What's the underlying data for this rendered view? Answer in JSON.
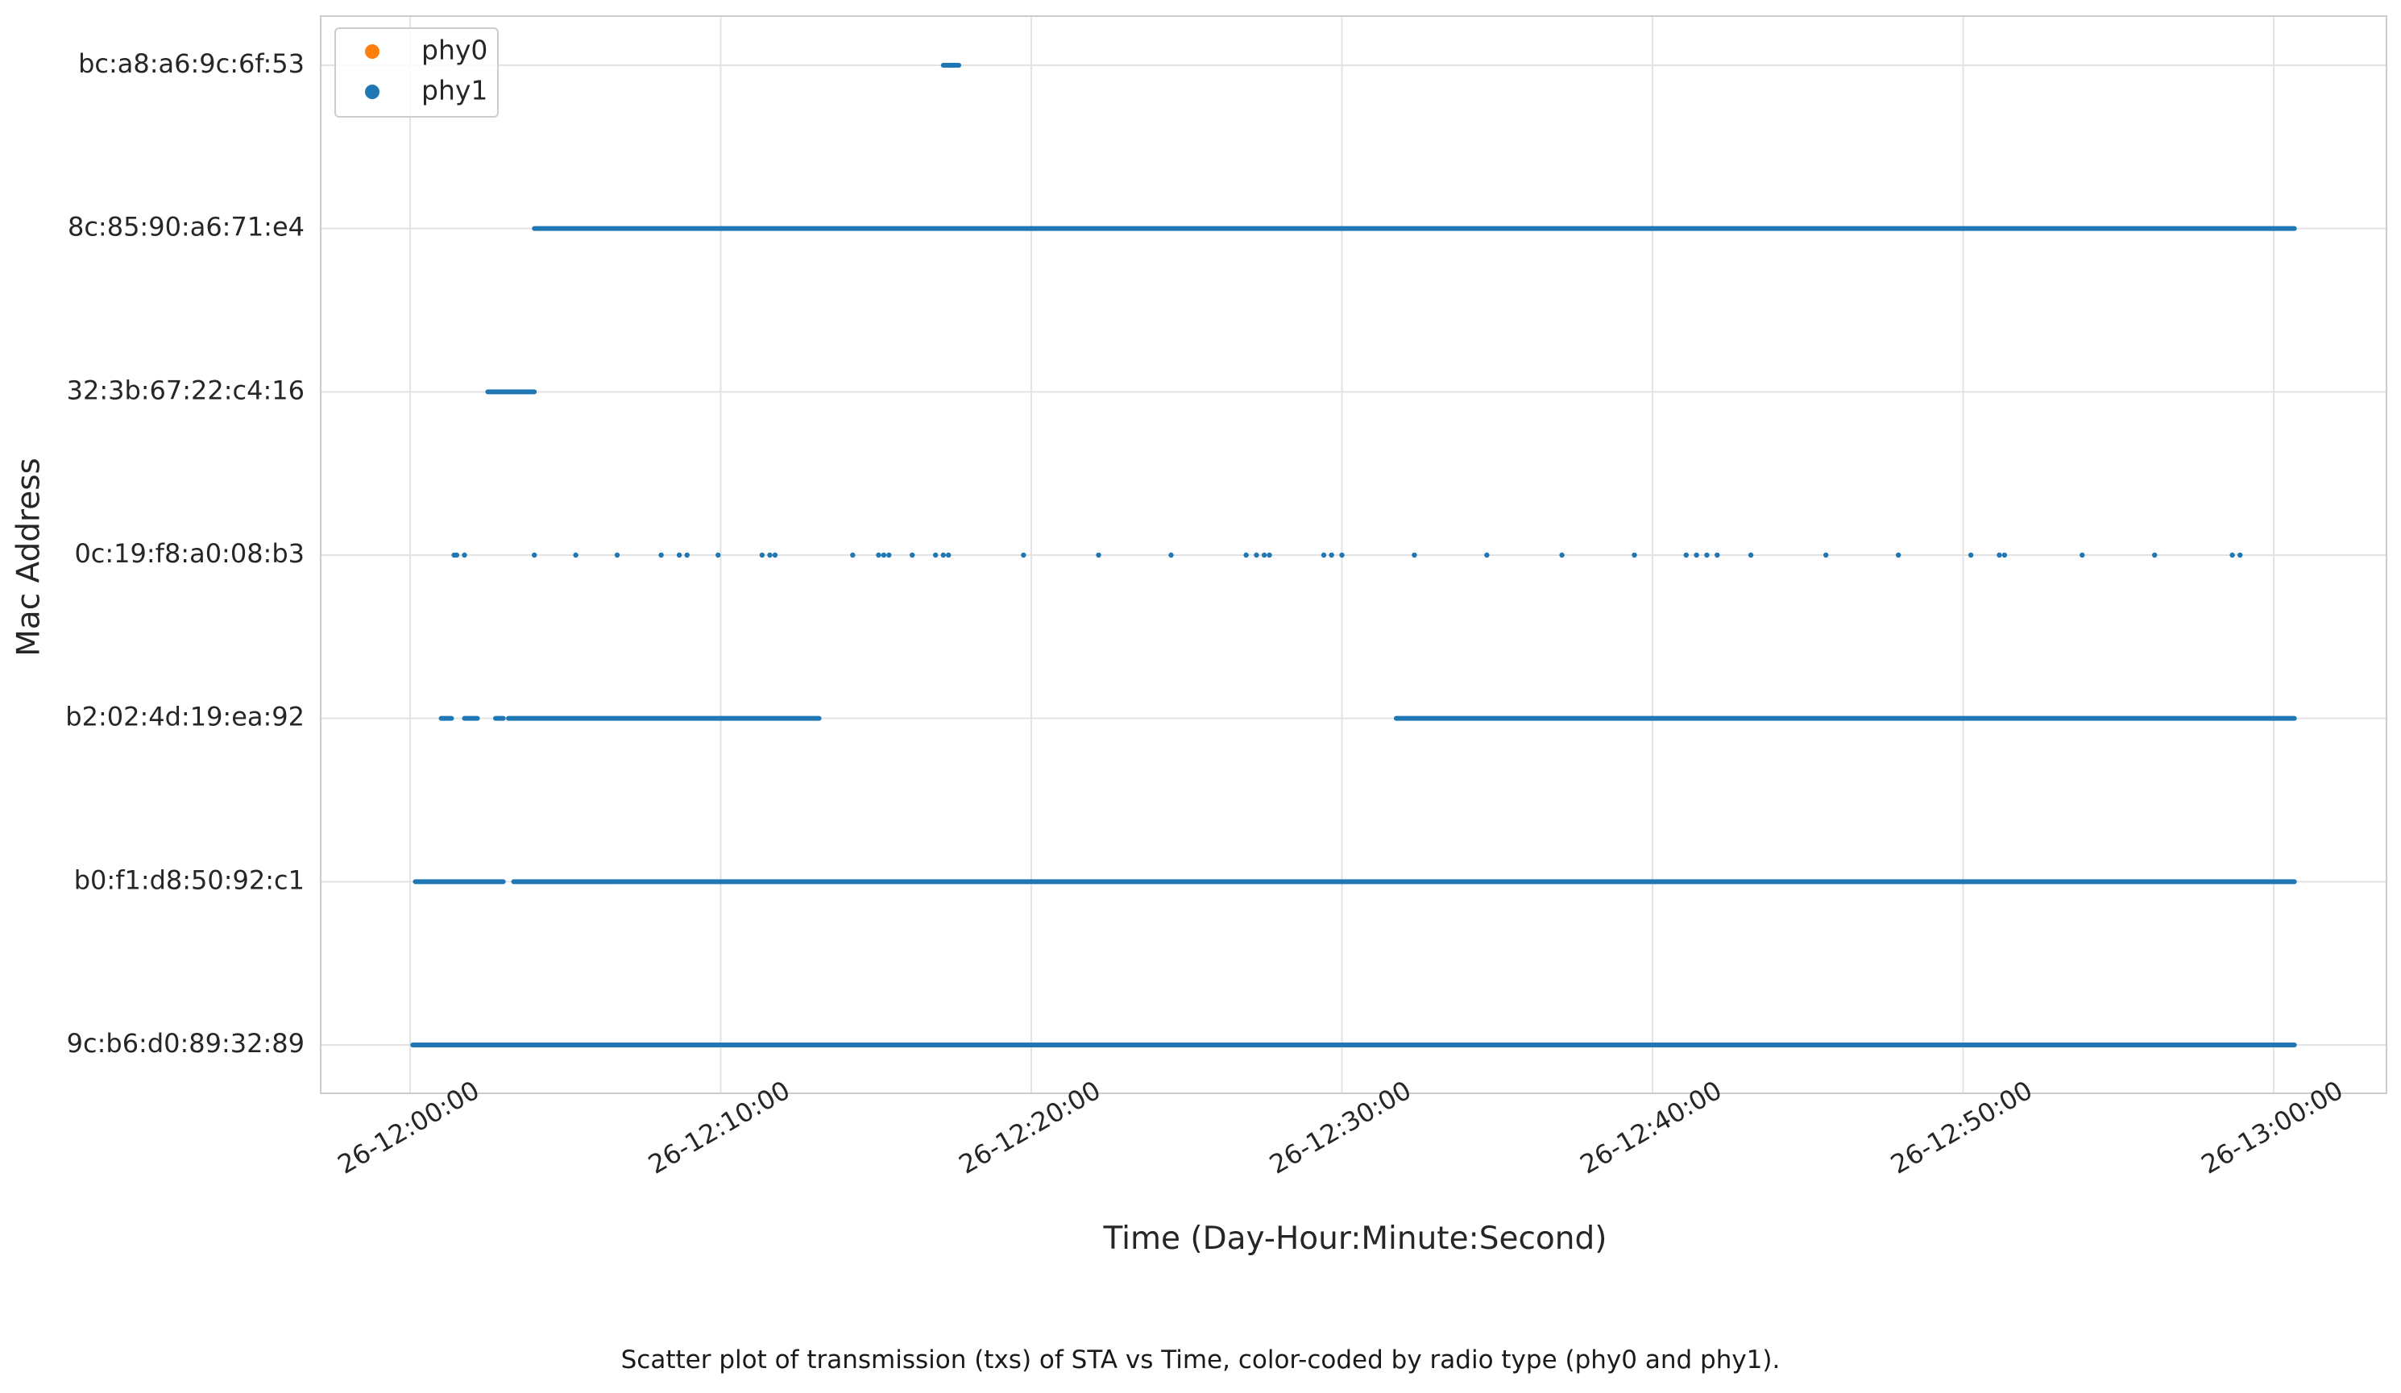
{
  "chart_data": {
    "type": "scatter",
    "title": "",
    "xlabel": "Time (Day-Hour:Minute:Second)",
    "ylabel": "Mac Address",
    "x_tick_labels": [
      "26-12:00:00",
      "26-12:10:00",
      "26-12:20:00",
      "26-12:30:00",
      "26-12:40:00",
      "26-12:50:00",
      "26-13:00:00"
    ],
    "xlim": [
      "26-11:57:10",
      "26-13:03:40"
    ],
    "y_categories": [
      "9c:b6:d0:89:32:89",
      "b0:f1:d8:50:92:c1",
      "b2:02:4d:19:ea:92",
      "0c:19:f8:a0:08:b3",
      "32:3b:67:22:c4:16",
      "8c:85:90:a6:71:e4",
      "bc:a8:a6:9c:6f:53"
    ],
    "grid": true,
    "legend_position": "top-left",
    "series": [
      {
        "name": "phy0",
        "color": "#ff7f0e",
        "segments": []
      },
      {
        "name": "phy1",
        "color": "#1f77b4",
        "segments": [
          {
            "mac": "bc:a8:a6:9c:6f:53",
            "from": "26-12:17:10",
            "to": "26-12:17:40"
          },
          {
            "mac": "8c:85:90:a6:71:e4",
            "from": "26-12:04:00",
            "to": "26-13:00:40"
          },
          {
            "mac": "32:3b:67:22:c4:16",
            "from": "26-12:02:30",
            "to": "26-12:04:00"
          },
          {
            "mac": "b2:02:4d:19:ea:92",
            "from": "26-12:01:00",
            "to": "26-12:01:20"
          },
          {
            "mac": "b2:02:4d:19:ea:92",
            "from": "26-12:01:45",
            "to": "26-12:02:10"
          },
          {
            "mac": "b2:02:4d:19:ea:92",
            "from": "26-12:02:45",
            "to": "26-12:03:00"
          },
          {
            "mac": "b2:02:4d:19:ea:92",
            "from": "26-12:03:10",
            "to": "26-12:13:10"
          },
          {
            "mac": "b2:02:4d:19:ea:92",
            "from": "26-12:31:45",
            "to": "26-13:00:40"
          },
          {
            "mac": "b0:f1:d8:50:92:c1",
            "from": "26-12:00:10",
            "to": "26-12:03:00"
          },
          {
            "mac": "b0:f1:d8:50:92:c1",
            "from": "26-12:03:20",
            "to": "26-13:00:40"
          },
          {
            "mac": "9c:b6:d0:89:32:89",
            "from": "26-12:00:05",
            "to": "26-13:00:40"
          }
        ],
        "points": [
          {
            "mac": "0c:19:f8:a0:08:b3",
            "times": [
              "26-12:01:25",
              "26-12:01:30",
              "26-12:01:45",
              "26-12:04:00",
              "26-12:05:20",
              "26-12:06:40",
              "26-12:08:05",
              "26-12:08:40",
              "26-12:08:55",
              "26-12:09:55",
              "26-12:11:20",
              "26-12:11:35",
              "26-12:11:45",
              "26-12:14:15",
              "26-12:15:05",
              "26-12:15:15",
              "26-12:15:25",
              "26-12:16:10",
              "26-12:16:55",
              "26-12:17:10",
              "26-12:17:20",
              "26-12:19:45",
              "26-12:22:10",
              "26-12:24:30",
              "26-12:26:55",
              "26-12:27:15",
              "26-12:27:30",
              "26-12:27:40",
              "26-12:29:25",
              "26-12:29:40",
              "26-12:30:00",
              "26-12:32:20",
              "26-12:34:40",
              "26-12:37:05",
              "26-12:39:25",
              "26-12:41:05",
              "26-12:41:25",
              "26-12:41:45",
              "26-12:42:05",
              "26-12:43:10",
              "26-12:45:35",
              "26-12:47:55",
              "26-12:50:15",
              "26-12:51:10",
              "26-12:51:20",
              "26-12:53:50",
              "26-12:56:10",
              "26-12:58:40",
              "26-12:58:55"
            ]
          }
        ]
      }
    ]
  },
  "caption": "Scatter plot of transmission (txs) of STA vs Time, color-coded by radio type (phy0 and phy1)."
}
